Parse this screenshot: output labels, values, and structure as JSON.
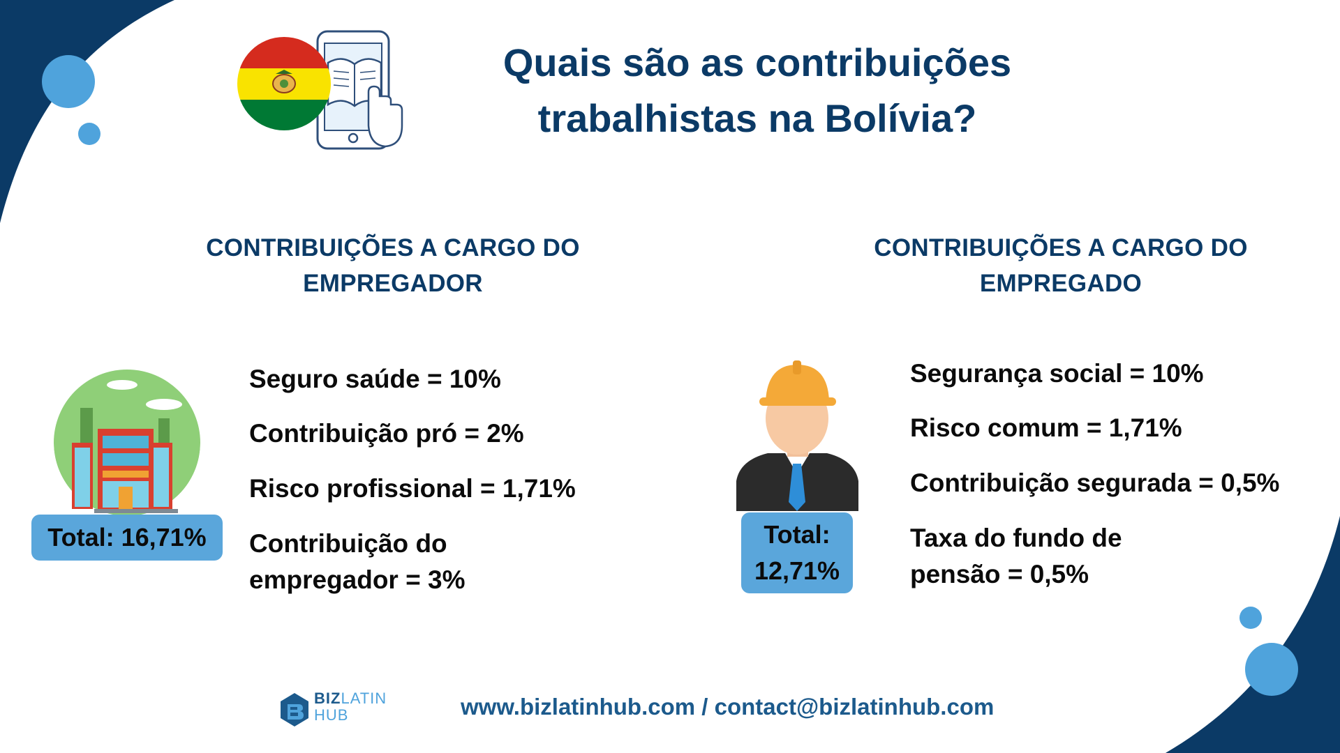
{
  "title": {
    "line1": "Quais são as contribuições",
    "line2": "trabalhistas na Bolívia?"
  },
  "employer": {
    "heading_line1": "CONTRIBUIÇÕES A CARGO DO",
    "heading_line2": "EMPREGADOR",
    "items": [
      "Seguro saúde = 10%",
      "Contribuição pró = 2%",
      "Risco profissional = 1,71%",
      "Contribuição do",
      "empregador = 3%"
    ],
    "total": "Total: 16,71%"
  },
  "employee": {
    "heading_line1": "CONTRIBUIÇÕES A CARGO DO",
    "heading_line2": "EMPREGADO",
    "items": [
      "Segurança social = 10%",
      "Risco comum = 1,71%",
      "Contribuição segurada = 0,5%",
      "Taxa do fundo de",
      "pensão = 0,5%"
    ],
    "total_line1": "Total:",
    "total_line2": "12,71%"
  },
  "footer": {
    "website": "www.bizlatinhub.com",
    "separator": " / ",
    "email": "contact@bizlatinhub.com",
    "logo_biz": "BIZ",
    "logo_latin": "LATIN",
    "logo_hub": "HUB"
  },
  "colors": {
    "navy": "#0b3a66",
    "accent_blue": "#4fa3dc",
    "flag_red": "#d52b1e",
    "flag_yellow": "#f9e300",
    "flag_green": "#007934"
  },
  "icons": [
    "bolivia-flag-icon",
    "tablet-book-icon",
    "building-icon",
    "worker-icon",
    "bizlatinhub-logo-icon"
  ]
}
